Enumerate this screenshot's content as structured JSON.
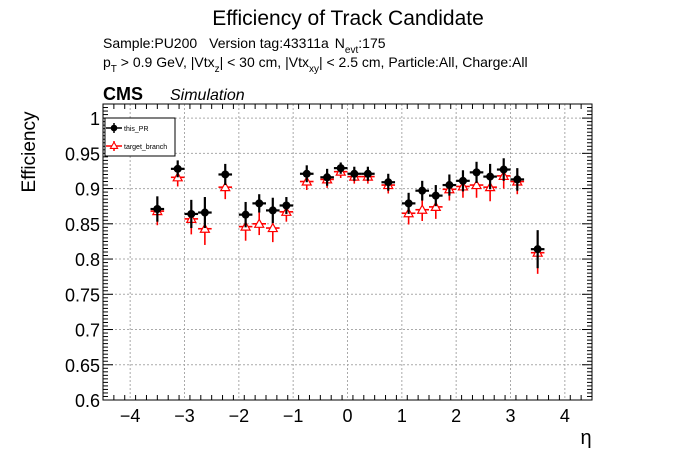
{
  "chart_data": {
    "type": "scatter",
    "title": "Efficiency of Track Candidate",
    "info_line1": {
      "sample": "Sample:PU200",
      "version": "Version tag:43311a",
      "nevt_main": "N",
      "nevt_sub": "evt",
      "nevt_value": ":175"
    },
    "info_line2": {
      "p": "p",
      "p_sub": "T",
      "cut1": " > 0.9 GeV, |Vtx",
      "cut1_sub": "z",
      "cut2": "| < 30 cm, |Vtx",
      "cut2_sub": "xy",
      "cut3": "| < 2.5 cm, Particle:All, Charge:All"
    },
    "cms_label": "CMS",
    "cms_sublabel": "Simulation",
    "xlabel": "η",
    "ylabel": "Efficiency",
    "xlim": [
      -4.5,
      4.5
    ],
    "ylim": [
      0.6,
      1.02
    ],
    "x_ticks": [
      -4,
      -3,
      -2,
      -1,
      0,
      1,
      2,
      3,
      4
    ],
    "x_tick_labels": [
      "−4",
      "−3",
      "−2",
      "−1",
      "0",
      "1",
      "2",
      "3",
      "4"
    ],
    "y_ticks": [
      0.6,
      0.65,
      0.7,
      0.75,
      0.8,
      0.85,
      0.9,
      0.95,
      1
    ],
    "y_tick_labels": [
      "0.6",
      "0.65",
      "0.7",
      "0.75",
      "0.8",
      "0.85",
      "0.9",
      "0.95",
      "1"
    ],
    "grid": true,
    "legend_position": "top-left",
    "x_half_width": 0.125,
    "series": [
      {
        "name": "this_PR",
        "color": "#000000",
        "marker": "filled-circle",
        "x": [
          -3.5,
          -3.125,
          -2.875,
          -2.625,
          -2.25,
          -1.875,
          -1.625,
          -1.375,
          -1.125,
          -0.75,
          -0.375,
          -0.125,
          0.125,
          0.375,
          0.75,
          1.125,
          1.375,
          1.625,
          1.875,
          2.125,
          2.375,
          2.625,
          2.875,
          3.125,
          3.5
        ],
        "y": [
          0.871,
          0.928,
          0.864,
          0.866,
          0.92,
          0.863,
          0.879,
          0.869,
          0.876,
          0.921,
          0.916,
          0.929,
          0.921,
          0.921,
          0.909,
          0.879,
          0.897,
          0.89,
          0.905,
          0.911,
          0.923,
          0.917,
          0.927,
          0.913,
          0.814
        ],
        "err": [
          0.018,
          0.012,
          0.02,
          0.022,
          0.015,
          0.018,
          0.013,
          0.018,
          0.012,
          0.012,
          0.012,
          0.008,
          0.01,
          0.01,
          0.012,
          0.015,
          0.014,
          0.015,
          0.015,
          0.015,
          0.015,
          0.018,
          0.016,
          0.016,
          0.027
        ]
      },
      {
        "name": "target_branch",
        "color": "#ff0000",
        "marker": "open-triangle",
        "x": [
          -3.5,
          -3.125,
          -2.875,
          -2.625,
          -2.25,
          -1.875,
          -1.625,
          -1.375,
          -1.125,
          -0.75,
          -0.375,
          -0.125,
          0.125,
          0.375,
          0.75,
          1.125,
          1.375,
          1.625,
          1.875,
          2.125,
          2.375,
          2.625,
          2.875,
          3.125,
          3.5
        ],
        "y": [
          0.868,
          0.916,
          0.857,
          0.843,
          0.902,
          0.846,
          0.85,
          0.844,
          0.867,
          0.91,
          0.913,
          0.924,
          0.917,
          0.917,
          0.905,
          0.865,
          0.87,
          0.874,
          0.899,
          0.903,
          0.905,
          0.902,
          0.918,
          0.91,
          0.809
        ],
        "err": [
          0.02,
          0.013,
          0.022,
          0.023,
          0.017,
          0.02,
          0.016,
          0.02,
          0.014,
          0.012,
          0.012,
          0.009,
          0.01,
          0.01,
          0.012,
          0.016,
          0.016,
          0.017,
          0.016,
          0.016,
          0.018,
          0.02,
          0.018,
          0.018,
          0.03
        ]
      }
    ]
  }
}
